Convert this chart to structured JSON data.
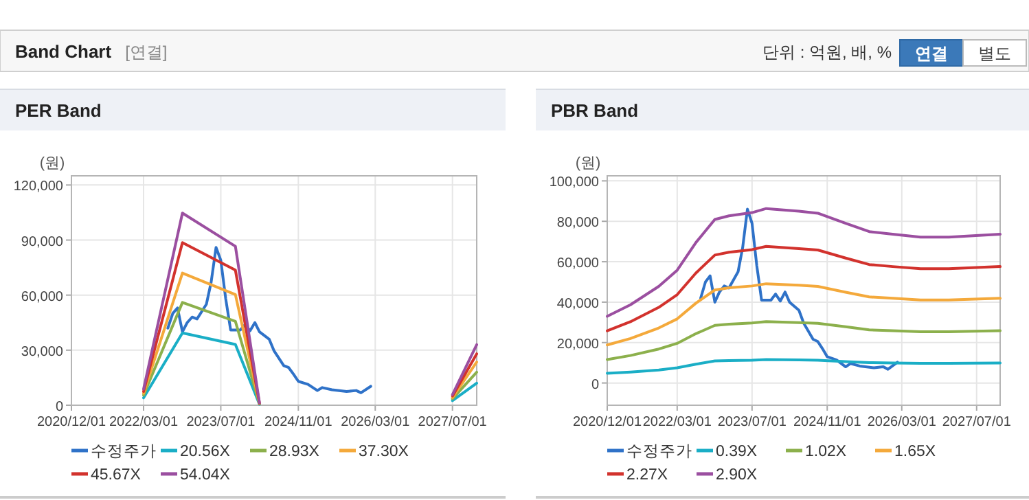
{
  "chart_data": [
    {
      "type": "other",
      "title": "Band Chart",
      "subtitle": "[연결]",
      "annotations": [
        "단위 : 억원, 배, %",
        "연결",
        "별도"
      ]
    },
    {
      "type": "line",
      "title": "PER Band",
      "ylabel": "(원)",
      "grid": true,
      "legend": "bottom",
      "marker": "none",
      "line_style": "solid",
      "xlim": [
        "2020-12-01",
        "2027-12-01"
      ],
      "ylim": [
        0,
        125000
      ],
      "xticks": [
        {
          "value": "2020-12-01",
          "label": "2020/12/01"
        },
        {
          "value": "2022-03-01",
          "label": "2022/03/01"
        },
        {
          "value": "2023-07-01",
          "label": "2023/07/01"
        },
        {
          "value": "2024-11-01",
          "label": "2024/11/01"
        },
        {
          "value": "2026-03-01",
          "label": "2026/03/01"
        },
        {
          "value": "2027-07-01",
          "label": "2027/07/01"
        }
      ],
      "yticks": [
        0,
        {
          "value": 30000,
          "label": "30,000"
        },
        {
          "value": 60000,
          "label": "60,000"
        },
        {
          "value": 90000,
          "label": "90,000"
        },
        {
          "value": 120000,
          "label": "120,000"
        }
      ],
      "series": [
        {
          "name": "수정주가",
          "color": "#2f72c8",
          "x": [
            "2022-08",
            "2022-09",
            "2022-10",
            "2022-11",
            "2022-12",
            "2023-01",
            "2023-02",
            "2023-04",
            "2023-05",
            "2023-06",
            "2023-07",
            "2023-08",
            "2023-09",
            "2023-11",
            "2023-12",
            "2024-01",
            "2024-02",
            "2024-03",
            "2024-05",
            "2024-06",
            "2024-08",
            "2024-09",
            "2024-10",
            "2024-11",
            "2025-01",
            "2025-03",
            "2025-04",
            "2025-06",
            "2025-09",
            "2025-11",
            "2025-12",
            "2026-02"
          ],
          "values": [
            42000,
            50000,
            53000,
            40000,
            45000,
            48000,
            47000,
            55000,
            67000,
            86000,
            79000,
            58000,
            41000,
            41000,
            44000,
            40500,
            45000,
            40000,
            36000,
            29600,
            21600,
            20500,
            17000,
            13000,
            11400,
            8000,
            9600,
            8400,
            7500,
            8000,
            6800,
            10300
          ]
        },
        {
          "name": "20.56X",
          "color": "#1aaec6",
          "x": [
            "2022-03",
            "2022-11",
            "2023-10",
            "2024-03",
            "2025-06",
            "2027-07",
            "2027-12"
          ],
          "values": [
            4000,
            39400,
            33100,
            500,
            null,
            2500,
            12000
          ]
        },
        {
          "name": "28.93X",
          "color": "#8cb04c",
          "x": [
            "2022-03",
            "2022-11",
            "2023-10",
            "2024-03",
            "2025-06",
            "2027-07",
            "2027-12"
          ],
          "values": [
            5500,
            56000,
            45700,
            700,
            null,
            3500,
            18000
          ]
        },
        {
          "name": "37.30X",
          "color": "#f4a93b",
          "x": [
            "2022-03",
            "2022-11",
            "2023-10",
            "2024-03",
            "2025-06",
            "2027-07",
            "2027-12"
          ],
          "values": [
            6500,
            72000,
            60300,
            900,
            null,
            4200,
            23500
          ]
        },
        {
          "name": "45.67X",
          "color": "#d2322d",
          "x": [
            "2022-03",
            "2022-11",
            "2023-10",
            "2024-03",
            "2025-06",
            "2027-07",
            "2027-12"
          ],
          "values": [
            7500,
            88600,
            73600,
            1100,
            null,
            5000,
            28000
          ]
        },
        {
          "name": "54.04X",
          "color": "#9b4fa0",
          "x": [
            "2022-03",
            "2022-11",
            "2023-10",
            "2024-03",
            "2025-06",
            "2027-07",
            "2027-12"
          ],
          "values": [
            8800,
            104700,
            86600,
            1300,
            null,
            5800,
            33000
          ]
        }
      ]
    },
    {
      "type": "line",
      "title": "PBR Band",
      "ylabel": "(원)",
      "grid": true,
      "legend": "bottom",
      "marker": "none",
      "line_style": "solid",
      "xlim": [
        "2020-12-01",
        "2027-12-01"
      ],
      "ylim": [
        -11000,
        102500
      ],
      "xticks": [
        {
          "value": "2020-12-01",
          "label": "2020/12/01"
        },
        {
          "value": "2022-03-01",
          "label": "2022/03/01"
        },
        {
          "value": "2023-07-01",
          "label": "2023/07/01"
        },
        {
          "value": "2024-11-01",
          "label": "2024/11/01"
        },
        {
          "value": "2026-03-01",
          "label": "2026/03/01"
        },
        {
          "value": "2027-07-01",
          "label": "2027/07/01"
        }
      ],
      "yticks": [
        0,
        {
          "value": 20000,
          "label": "20,000"
        },
        {
          "value": 40000,
          "label": "40,000"
        },
        {
          "value": 60000,
          "label": "60,000"
        },
        {
          "value": 80000,
          "label": "80,000"
        },
        {
          "value": 100000,
          "label": "100,000"
        }
      ],
      "series": [
        {
          "name": "수정주가",
          "color": "#2f72c8",
          "x": [
            "2022-08",
            "2022-09",
            "2022-10",
            "2022-11",
            "2022-12",
            "2023-01",
            "2023-02",
            "2023-04",
            "2023-05",
            "2023-06",
            "2023-07",
            "2023-08",
            "2023-09",
            "2023-11",
            "2023-12",
            "2024-01",
            "2024-02",
            "2024-03",
            "2024-05",
            "2024-06",
            "2024-08",
            "2024-09",
            "2024-10",
            "2024-11",
            "2025-01",
            "2025-03",
            "2025-04",
            "2025-06",
            "2025-09",
            "2025-11",
            "2025-12",
            "2026-02"
          ],
          "values": [
            42000,
            50000,
            53000,
            40000,
            45000,
            48000,
            47000,
            55000,
            67000,
            86000,
            79000,
            58000,
            41000,
            41000,
            44000,
            40500,
            45000,
            40000,
            36000,
            29600,
            21600,
            20500,
            17000,
            13000,
            11400,
            8000,
            9600,
            8400,
            7500,
            8000,
            6800,
            10300
          ]
        },
        {
          "name": "0.39X",
          "color": "#1aaec6",
          "x": [
            "2020-12",
            "2021-05",
            "2021-11",
            "2022-03",
            "2022-07",
            "2022-11",
            "2023-02",
            "2023-07",
            "2023-10",
            "2024-05",
            "2024-09",
            "2025-03",
            "2025-08",
            "2026-01",
            "2026-07",
            "2027-01",
            "2027-12"
          ],
          "values": [
            4800,
            5400,
            6400,
            7500,
            9300,
            10900,
            11100,
            11300,
            11600,
            11400,
            11300,
            10600,
            10100,
            9900,
            9700,
            9700,
            9900
          ]
        },
        {
          "name": "1.02X",
          "color": "#8cb04c",
          "x": [
            "2020-12",
            "2021-05",
            "2021-11",
            "2022-03",
            "2022-07",
            "2022-11",
            "2023-02",
            "2023-07",
            "2023-10",
            "2024-05",
            "2024-09",
            "2025-03",
            "2025-08",
            "2026-01",
            "2026-07",
            "2027-01",
            "2027-12"
          ],
          "values": [
            11600,
            13600,
            16800,
            19600,
            24400,
            28500,
            29100,
            29700,
            30400,
            29900,
            29500,
            27800,
            26300,
            25900,
            25400,
            25400,
            25900
          ]
        },
        {
          "name": "1.65X",
          "color": "#f4a93b",
          "x": [
            "2020-12",
            "2021-05",
            "2021-11",
            "2022-03",
            "2022-07",
            "2022-11",
            "2023-02",
            "2023-07",
            "2023-10",
            "2024-05",
            "2024-09",
            "2025-03",
            "2025-08",
            "2026-01",
            "2026-07",
            "2027-01",
            "2027-12"
          ],
          "values": [
            18800,
            22000,
            27200,
            31700,
            39500,
            46000,
            47100,
            48000,
            49100,
            48400,
            47800,
            44900,
            42600,
            41900,
            41100,
            41100,
            41900
          ]
        },
        {
          "name": "2.27X",
          "color": "#d2322d",
          "x": [
            "2020-12",
            "2021-05",
            "2021-11",
            "2022-03",
            "2022-07",
            "2022-11",
            "2023-02",
            "2023-07",
            "2023-10",
            "2024-05",
            "2024-09",
            "2025-03",
            "2025-08",
            "2026-01",
            "2026-07",
            "2027-01",
            "2027-12"
          ],
          "values": [
            25800,
            30300,
            37400,
            43700,
            54400,
            63300,
            64700,
            66000,
            67600,
            66500,
            65800,
            61800,
            58600,
            57600,
            56500,
            56500,
            57600
          ]
        },
        {
          "name": "2.90X",
          "color": "#9b4fa0",
          "x": [
            "2020-12",
            "2021-05",
            "2021-11",
            "2022-03",
            "2022-07",
            "2022-11",
            "2023-02",
            "2023-07",
            "2023-10",
            "2024-05",
            "2024-09",
            "2025-03",
            "2025-08",
            "2026-01",
            "2026-07",
            "2027-01",
            "2027-12"
          ],
          "values": [
            33000,
            38700,
            47800,
            55800,
            69500,
            80900,
            82700,
            84300,
            86300,
            85000,
            84000,
            79000,
            74900,
            73600,
            72200,
            72200,
            73600
          ]
        }
      ]
    }
  ]
}
